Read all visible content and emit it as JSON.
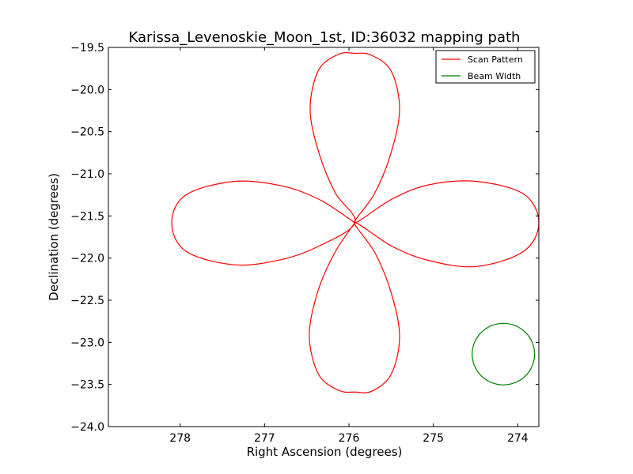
{
  "chart_data": {
    "type": "line",
    "title": "Karissa_Levenoskie_Moon_1st, ID:36032 mapping path",
    "xlabel": "Right Ascension (degrees)",
    "ylabel": "Declination (degrees)",
    "xlim": [
      278.85,
      273.75
    ],
    "ylim": [
      -24.0,
      -19.5
    ],
    "x_ticks": [
      278,
      277,
      276,
      275,
      274
    ],
    "x_tick_labels": [
      "278",
      "277",
      "276",
      "275",
      "274"
    ],
    "y_ticks": [
      -19.5,
      -20.0,
      -20.5,
      -21.0,
      -21.5,
      -22.0,
      -22.5,
      -23.0,
      -23.5,
      -24.0
    ],
    "y_tick_labels": [
      "−19.5",
      "−20.0",
      "−20.5",
      "−21.0",
      "−21.5",
      "−22.0",
      "−22.5",
      "−23.0",
      "−23.5",
      "−24.0"
    ],
    "grid": false,
    "legend_position": "upper-right",
    "series": [
      {
        "name": "Scan Pattern",
        "color": "#ff0000",
        "shape": "four-petal rose scan path",
        "center": {
          "ra": 275.93,
          "dec": -21.58
        },
        "petal_extent_ra": 1.85,
        "petal_extent_dec": 1.99,
        "x": [
          275.93,
          276.36,
          276.81,
          277.36,
          277.93,
          278.1,
          277.93,
          277.36,
          276.81,
          276.36,
          275.93,
          276.16,
          276.35,
          276.46,
          276.36,
          276.12,
          275.93,
          275.74,
          275.5,
          275.4,
          275.51,
          275.7,
          275.93,
          275.49,
          275.05,
          274.49,
          273.93,
          273.75,
          273.93,
          274.49,
          275.05,
          275.49,
          275.93,
          275.69,
          275.5,
          275.4,
          275.5,
          275.73,
          275.93,
          276.12,
          276.36,
          276.47,
          276.37,
          276.17,
          275.93
        ],
        "y": [
          -21.58,
          -21.3,
          -21.14,
          -21.09,
          -21.25,
          -21.58,
          -21.92,
          -22.08,
          -22.02,
          -21.86,
          -21.58,
          -21.23,
          -20.77,
          -20.24,
          -19.77,
          -19.58,
          -19.57,
          -19.59,
          -19.78,
          -20.24,
          -20.78,
          -21.24,
          -21.58,
          -21.3,
          -21.13,
          -21.09,
          -21.24,
          -21.58,
          -21.92,
          -22.1,
          -22.03,
          -21.86,
          -21.58,
          -21.94,
          -22.41,
          -22.93,
          -23.38,
          -23.58,
          -23.59,
          -23.57,
          -23.38,
          -22.92,
          -22.4,
          -21.94,
          -21.58
        ]
      },
      {
        "name": "Beam Width",
        "color": "#008000",
        "shape": "circle",
        "center": {
          "ra": 274.17,
          "dec": -23.14
        },
        "radius_ra": 0.37,
        "radius_dec": 0.365
      }
    ]
  }
}
